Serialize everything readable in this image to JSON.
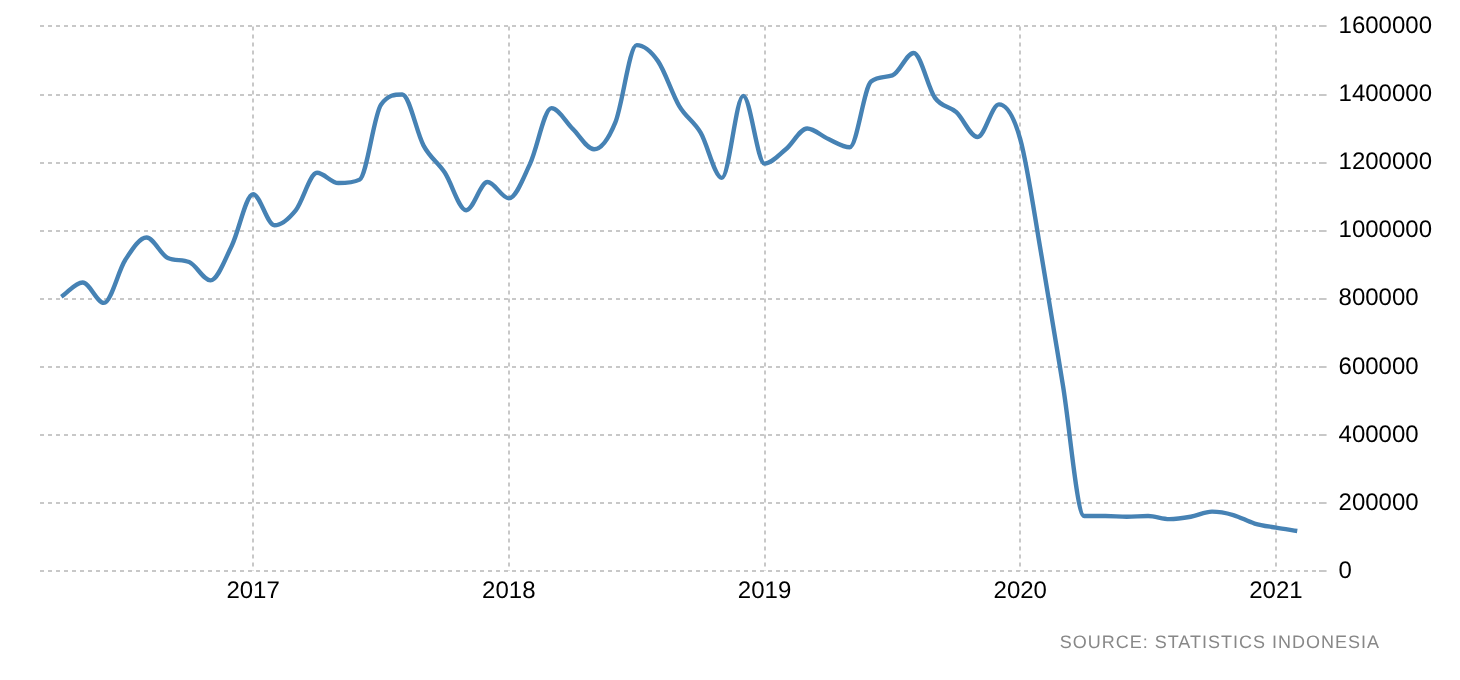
{
  "chart_data": {
    "type": "line",
    "x": [
      "2016-04",
      "2016-05",
      "2016-06",
      "2016-07",
      "2016-08",
      "2016-09",
      "2016-10",
      "2016-11",
      "2016-12",
      "2017-01",
      "2017-02",
      "2017-03",
      "2017-04",
      "2017-05",
      "2017-06",
      "2017-07",
      "2017-08",
      "2017-09",
      "2017-10",
      "2017-11",
      "2017-12",
      "2018-01",
      "2018-02",
      "2018-03",
      "2018-04",
      "2018-05",
      "2018-06",
      "2018-07",
      "2018-08",
      "2018-09",
      "2018-10",
      "2018-11",
      "2018-12",
      "2019-01",
      "2019-02",
      "2019-03",
      "2019-04",
      "2019-05",
      "2019-06",
      "2019-07",
      "2019-08",
      "2019-09",
      "2019-10",
      "2019-11",
      "2019-12",
      "2020-01",
      "2020-02",
      "2020-03",
      "2020-04",
      "2020-05",
      "2020-06",
      "2020-07",
      "2020-08",
      "2020-09",
      "2020-10",
      "2020-11",
      "2020-12",
      "2021-01",
      "2021-02"
    ],
    "series": [
      {
        "color": "#4682b4",
        "values": [
          806000,
          848000,
          788000,
          914000,
          980000,
          920000,
          908000,
          854000,
          956000,
          1107000,
          1016000,
          1060000,
          1170000,
          1140000,
          1150000,
          1370000,
          1400000,
          1250000,
          1170000,
          1060000,
          1143000,
          1095000,
          1197000,
          1360000,
          1299000,
          1239000,
          1318000,
          1545000,
          1498000,
          1366000,
          1288000,
          1155000,
          1396000,
          1197000,
          1239000,
          1300000,
          1269000,
          1245000,
          1438000,
          1456000,
          1522000,
          1390000,
          1348000,
          1275000,
          1371000,
          1269000,
          926000,
          547000,
          162000,
          162000,
          160000,
          162000,
          153000,
          160000,
          175000,
          165000,
          140000,
          128000,
          118000
        ]
      }
    ],
    "xlim": [
      "2016-03",
      "2021-03"
    ],
    "xticks": [
      "2017",
      "2018",
      "2019",
      "2020",
      "2021"
    ],
    "ylim": [
      0,
      1600000
    ],
    "yticks": [
      0,
      200000,
      400000,
      600000,
      800000,
      1000000,
      1200000,
      1400000,
      1600000
    ],
    "grid": true,
    "marker": "none",
    "line_style": "solid",
    "annotations": [
      "SOURCE: STATISTICS INDONESIA"
    ]
  }
}
